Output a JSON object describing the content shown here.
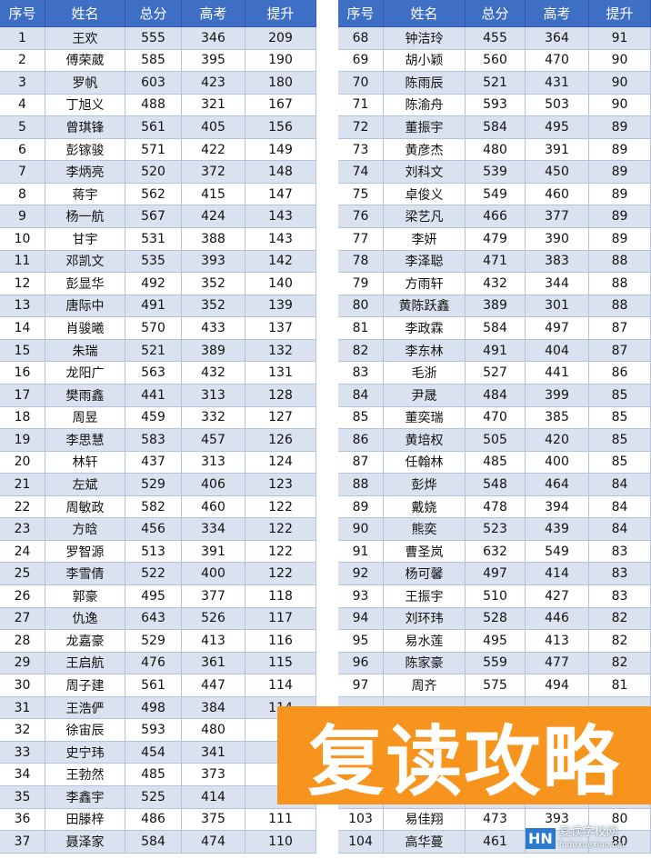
{
  "tables": [
    {
      "header": [
        "序号",
        "姓名",
        "总分",
        "高考",
        "提升"
      ],
      "rows": [
        [
          1,
          "王欢",
          555,
          346,
          209
        ],
        [
          2,
          "傅荣葳",
          585,
          395,
          190
        ],
        [
          3,
          "罗帆",
          603,
          423,
          180
        ],
        [
          4,
          "丁旭义",
          488,
          321,
          167
        ],
        [
          5,
          "曾琪锋",
          561,
          405,
          156
        ],
        [
          6,
          "彭镓骏",
          571,
          422,
          149
        ],
        [
          7,
          "李炳亮",
          520,
          372,
          148
        ],
        [
          8,
          "蒋宇",
          562,
          415,
          147
        ],
        [
          9,
          "杨一航",
          567,
          424,
          143
        ],
        [
          10,
          "甘宇",
          531,
          388,
          143
        ],
        [
          11,
          "邓凯文",
          535,
          393,
          142
        ],
        [
          12,
          "彭显华",
          492,
          352,
          140
        ],
        [
          13,
          "唐际中",
          491,
          352,
          139
        ],
        [
          14,
          "肖骏曦",
          570,
          433,
          137
        ],
        [
          15,
          "朱瑞",
          521,
          389,
          132
        ],
        [
          16,
          "龙阳广",
          563,
          432,
          131
        ],
        [
          17,
          "樊雨鑫",
          441,
          313,
          128
        ],
        [
          18,
          "周昱",
          459,
          332,
          127
        ],
        [
          19,
          "李思慧",
          583,
          457,
          126
        ],
        [
          20,
          "林轩",
          437,
          313,
          124
        ],
        [
          21,
          "左斌",
          529,
          406,
          123
        ],
        [
          22,
          "周敏政",
          582,
          460,
          122
        ],
        [
          23,
          "方晗",
          456,
          334,
          122
        ],
        [
          24,
          "罗智源",
          513,
          391,
          122
        ],
        [
          25,
          "李雪倩",
          522,
          400,
          122
        ],
        [
          26,
          "郭豪",
          495,
          377,
          118
        ],
        [
          27,
          "仇逸",
          643,
          526,
          117
        ],
        [
          28,
          "龙嘉豪",
          529,
          413,
          116
        ],
        [
          29,
          "王启航",
          476,
          361,
          115
        ],
        [
          30,
          "周子建",
          561,
          447,
          114
        ],
        [
          31,
          "王浩俨",
          498,
          384,
          114
        ],
        [
          32,
          "徐宙辰",
          593,
          480,
          null
        ],
        [
          33,
          "史宁玮",
          454,
          341,
          null
        ],
        [
          34,
          "王勃然",
          485,
          373,
          null
        ],
        [
          35,
          "李鑫宇",
          525,
          414,
          null
        ],
        [
          36,
          "田滕梓",
          486,
          375,
          111
        ],
        [
          37,
          "聂泽家",
          584,
          474,
          110
        ]
      ]
    },
    {
      "header": [
        "序号",
        "姓名",
        "总分",
        "高考",
        "提升"
      ],
      "rows": [
        [
          68,
          "钟洁玲",
          455,
          364,
          91
        ],
        [
          69,
          "胡小颖",
          560,
          470,
          90
        ],
        [
          70,
          "陈雨辰",
          521,
          431,
          90
        ],
        [
          71,
          "陈渝舟",
          593,
          503,
          90
        ],
        [
          72,
          "董振宇",
          584,
          495,
          89
        ],
        [
          73,
          "黄彦杰",
          480,
          391,
          89
        ],
        [
          74,
          "刘科文",
          539,
          450,
          89
        ],
        [
          75,
          "卓俊义",
          549,
          460,
          89
        ],
        [
          76,
          "梁艺凡",
          466,
          377,
          89
        ],
        [
          77,
          "李妍",
          479,
          390,
          89
        ],
        [
          78,
          "李泽聪",
          471,
          383,
          88
        ],
        [
          79,
          "方雨轩",
          432,
          344,
          88
        ],
        [
          80,
          "黄陈跃鑫",
          389,
          301,
          88
        ],
        [
          81,
          "李政霖",
          584,
          497,
          87
        ],
        [
          82,
          "李东林",
          491,
          404,
          87
        ],
        [
          83,
          "毛浙",
          527,
          441,
          86
        ],
        [
          84,
          "尹晟",
          484,
          399,
          85
        ],
        [
          85,
          "董奕瑞",
          470,
          385,
          85
        ],
        [
          86,
          "黄培权",
          505,
          420,
          85
        ],
        [
          87,
          "任翰林",
          485,
          400,
          85
        ],
        [
          88,
          "彭烨",
          548,
          464,
          84
        ],
        [
          89,
          "戴娆",
          478,
          394,
          84
        ],
        [
          90,
          "熊奕",
          523,
          439,
          84
        ],
        [
          91,
          "曹圣岚",
          632,
          549,
          83
        ],
        [
          92,
          "杨可馨",
          497,
          414,
          83
        ],
        [
          93,
          "王振宇",
          510,
          427,
          83
        ],
        [
          94,
          "刘环玮",
          528,
          446,
          82
        ],
        [
          95,
          "易水莲",
          495,
          413,
          82
        ],
        [
          96,
          "陈家豪",
          559,
          477,
          82
        ],
        [
          97,
          "周齐",
          575,
          494,
          81
        ],
        null,
        null,
        null,
        null,
        null,
        [
          103,
          "易佳翔",
          473,
          393,
          80
        ],
        [
          104,
          "高华蔓",
          461,
          null,
          80
        ]
      ]
    }
  ],
  "overlay": {
    "title": "复读攻略"
  },
  "watermark": {
    "logo": "HN",
    "name": "复读学校网",
    "url": "fuduxuexiao.net"
  }
}
